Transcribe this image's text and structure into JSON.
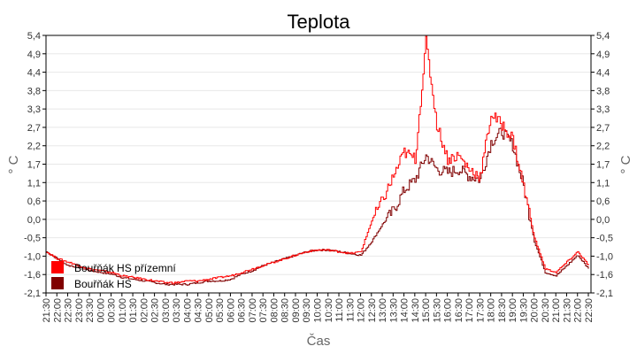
{
  "chart_data": {
    "type": "line",
    "title": "Teplota",
    "xlabel": "Čas",
    "ylabel": "° C",
    "ylabel_right": "° C",
    "ylim": [
      -2.1,
      5.4
    ],
    "yticks": [
      "5,4",
      "4,9",
      "4,4",
      "3,8",
      "3,3",
      "2,7",
      "2,2",
      "1,7",
      "1,1",
      "0,6",
      "0,0",
      "-0,5",
      "-1,0",
      "-1,6",
      "-2,1"
    ],
    "grid": true,
    "legend_position": "bottom-left inside",
    "categories": [
      "21:30",
      "22:00",
      "22:30",
      "23:00",
      "23:30",
      "00:00",
      "00:30",
      "01:00",
      "01:30",
      "02:00",
      "02:30",
      "03:00",
      "03:30",
      "04:00",
      "04:30",
      "05:00",
      "05:30",
      "06:00",
      "06:30",
      "07:00",
      "07:30",
      "08:00",
      "08:30",
      "09:00",
      "09:30",
      "10:00",
      "10:30",
      "11:00",
      "11:30",
      "12:00",
      "12:30",
      "13:00",
      "13:30",
      "14:00",
      "14:30",
      "15:00",
      "15:30",
      "16:00",
      "16:30",
      "17:00",
      "17:30",
      "18:00",
      "18:30",
      "19:00",
      "19:30",
      "20:00",
      "20:30",
      "21:00",
      "21:30",
      "22:00",
      "22:30"
    ],
    "series": [
      {
        "name": "Bouřňák HS přízemní",
        "color": "#ff0000",
        "values": [
          -0.9,
          -1.1,
          -1.2,
          -1.3,
          -1.4,
          -1.45,
          -1.5,
          -1.6,
          -1.65,
          -1.7,
          -1.75,
          -1.8,
          -1.8,
          -1.75,
          -1.75,
          -1.7,
          -1.65,
          -1.6,
          -1.5,
          -1.4,
          -1.3,
          -1.2,
          -1.1,
          -1.0,
          -0.9,
          -0.85,
          -0.85,
          -0.9,
          -0.95,
          -0.9,
          0.0,
          0.6,
          1.3,
          2.0,
          1.8,
          5.2,
          2.8,
          1.8,
          1.9,
          1.5,
          1.3,
          3.1,
          2.8,
          2.4,
          1.0,
          -0.5,
          -1.4,
          -1.5,
          -1.2,
          -0.9,
          -1.3
        ]
      },
      {
        "name": "Bouřňák HS",
        "color": "#800000",
        "values": [
          -0.9,
          -1.1,
          -1.3,
          -1.35,
          -1.45,
          -1.5,
          -1.55,
          -1.65,
          -1.7,
          -1.75,
          -1.8,
          -1.85,
          -1.85,
          -1.85,
          -1.8,
          -1.75,
          -1.75,
          -1.7,
          -1.55,
          -1.45,
          -1.3,
          -1.2,
          -1.1,
          -1.0,
          -0.9,
          -0.85,
          -0.85,
          -0.9,
          -0.95,
          -1.0,
          -0.6,
          -0.1,
          0.3,
          0.9,
          1.2,
          1.9,
          1.5,
          1.4,
          1.5,
          1.3,
          1.2,
          2.3,
          2.6,
          2.2,
          1.0,
          -0.6,
          -1.5,
          -1.6,
          -1.3,
          -1.0,
          -1.4
        ]
      }
    ]
  }
}
